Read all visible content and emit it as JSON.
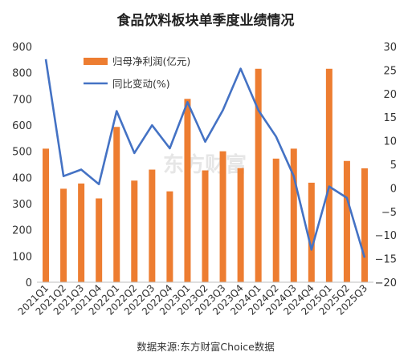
{
  "colors": {
    "bar": "#ED7D31",
    "line": "#4472C4",
    "text": "#333333",
    "watermark": "#e6e6e6"
  },
  "watermark_text": "东方财富",
  "source": "数据来源:东方财富Choice数据",
  "chart_data": {
    "type": "bar",
    "title": "食品饮料板块单季度业绩情况",
    "categories": [
      "2021Q1",
      "2021Q2",
      "2021Q3",
      "2021Q4",
      "2022Q1",
      "2022Q2",
      "2022Q3",
      "2022Q4",
      "2023Q1",
      "2023Q2",
      "2023Q3",
      "2023Q4",
      "2024Q1",
      "2024Q2",
      "2024Q3",
      "2024Q4",
      "2025Q1",
      "2025Q2",
      "2025Q3"
    ],
    "left_axis": {
      "ylim": [
        0,
        900
      ],
      "ticks": [
        "0",
        "100",
        "200",
        "300",
        "400",
        "500",
        "600",
        "700",
        "800",
        "900"
      ]
    },
    "right_axis": {
      "ylim": [
        -20,
        30
      ],
      "ticks": [
        "−20",
        "−15",
        "−10",
        "−5",
        "0",
        "5",
        "10",
        "15",
        "20",
        "25",
        "30"
      ]
    },
    "legend_position": "top-left",
    "series": [
      {
        "name": "归母净利润(亿元)",
        "type": "bar",
        "axis": "left",
        "values": [
          510,
          357,
          377,
          320,
          593,
          388,
          430,
          347,
          700,
          427,
          500,
          436,
          815,
          472,
          510,
          380,
          815,
          463,
          435
        ]
      },
      {
        "name": "同比变动(%)",
        "type": "line",
        "axis": "right",
        "values": [
          27.3,
          2.5,
          3.9,
          0.8,
          16.3,
          7.4,
          13.3,
          8.4,
          18.2,
          9.8,
          16.5,
          25.3,
          16.5,
          10.9,
          2.5,
          -13.1,
          0.3,
          -2.1,
          -14.8
        ]
      }
    ],
    "grid": false
  }
}
